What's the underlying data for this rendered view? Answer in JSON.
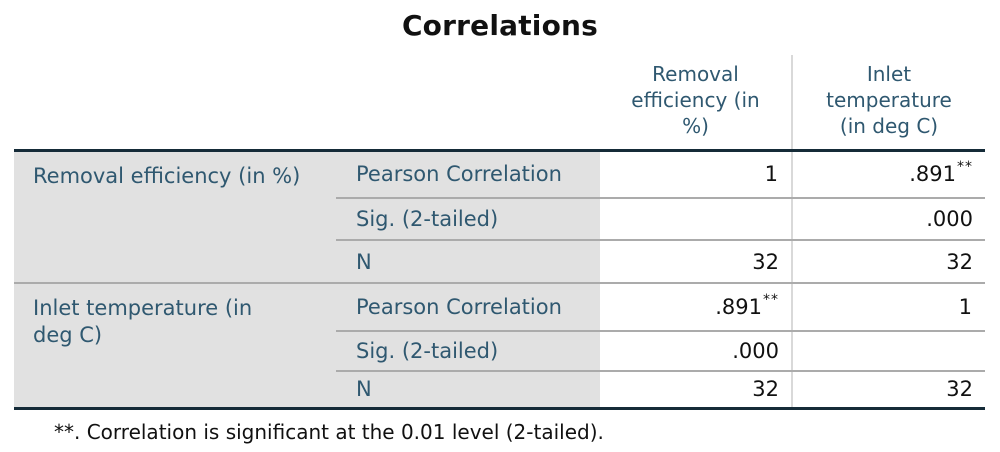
{
  "title": "Correlations",
  "table": {
    "column_headers": [
      "Removal efficiency (in %)",
      "Inlet temperature (in deg C)"
    ],
    "groups": [
      {
        "label": "Removal efficiency (in %)",
        "rows": [
          {
            "stat": "Pearson Correlation",
            "cells": [
              {
                "text": "1",
                "sup": ""
              },
              {
                "text": ".891",
                "sup": "**"
              }
            ]
          },
          {
            "stat": "Sig. (2-tailed)",
            "cells": [
              {
                "text": "",
                "sup": ""
              },
              {
                "text": ".000",
                "sup": ""
              }
            ]
          },
          {
            "stat": "N",
            "cells": [
              {
                "text": "32",
                "sup": ""
              },
              {
                "text": "32",
                "sup": ""
              }
            ]
          }
        ]
      },
      {
        "label": "Inlet temperature (in deg C)",
        "rows": [
          {
            "stat": "Pearson Correlation",
            "cells": [
              {
                "text": ".891",
                "sup": "**"
              },
              {
                "text": "1",
                "sup": ""
              }
            ]
          },
          {
            "stat": "Sig. (2-tailed)",
            "cells": [
              {
                "text": ".000",
                "sup": ""
              },
              {
                "text": "",
                "sup": ""
              }
            ]
          },
          {
            "stat": "N",
            "cells": [
              {
                "text": "32",
                "sup": ""
              },
              {
                "text": "32",
                "sup": ""
              }
            ]
          }
        ]
      }
    ]
  },
  "footnote": "**. Correlation is significant at the 0.01 level (2-tailed).",
  "colors": {
    "header_text": "#2f5870",
    "stub_background": "#e1e1e1",
    "heavy_border": "#152b38",
    "row_divider": "#ababab",
    "column_divider": "#d9d9d9",
    "value_text": "#111111"
  },
  "chart_data": {
    "type": "table",
    "title": "Correlations",
    "variables": [
      "Removal efficiency (in %)",
      "Inlet temperature (in deg C)"
    ],
    "statistics": [
      "Pearson Correlation",
      "Sig. (2-tailed)",
      "N"
    ],
    "matrix": [
      {
        "variable": "Removal efficiency (in %)",
        "pearson_correlation": [
          1,
          0.891
        ],
        "sig_2_tailed": [
          null,
          0.0
        ],
        "n": [
          32,
          32
        ],
        "significance_flags": [
          null,
          "**"
        ]
      },
      {
        "variable": "Inlet temperature (in deg C)",
        "pearson_correlation": [
          0.891,
          1
        ],
        "sig_2_tailed": [
          0.0,
          null
        ],
        "n": [
          32,
          32
        ],
        "significance_flags": [
          "**",
          null
        ]
      }
    ],
    "footnote": "**. Correlation is significant at the 0.01 level (2-tailed)."
  }
}
